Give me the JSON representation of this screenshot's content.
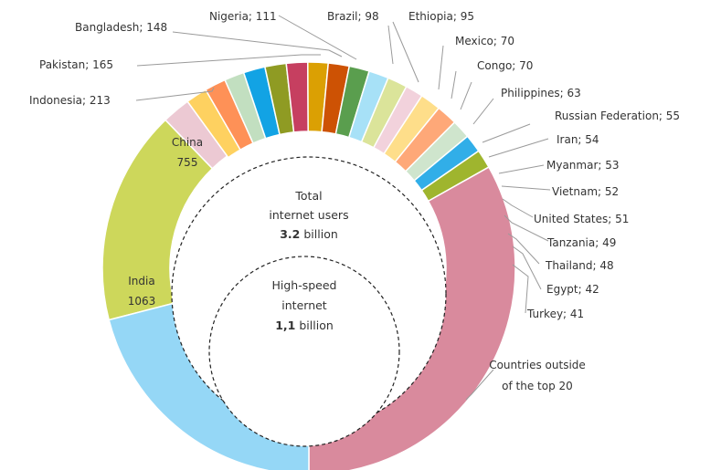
{
  "chart_data": {
    "type": "pie",
    "total_label": {
      "line1": "Total",
      "line2": "internet users",
      "value": "3.2",
      "unit": " billion"
    },
    "inner_label": {
      "line1": "High-speed",
      "line2": "internet",
      "value": "1,1",
      "unit": " billion"
    },
    "slices": [
      {
        "label": "China",
        "value": 755,
        "color": "#cdd75b"
      },
      {
        "label": "Indonesia",
        "value": 213,
        "color": "#ecc9d3"
      },
      {
        "label": "Pakistan",
        "value": 165,
        "color": "#fed160"
      },
      {
        "label": "Bangladesh",
        "value": 148,
        "color": "#fe9157"
      },
      {
        "label": "Nigeria",
        "value": 111,
        "color": "#c2dfc0"
      },
      {
        "label": "Brazil",
        "value": 98,
        "color": "#12a3e4"
      },
      {
        "label": "Ethiopia",
        "value": 95,
        "color": "#8f9b23"
      },
      {
        "label": "Mexico",
        "value": 70,
        "color": "#c63f60"
      },
      {
        "label": "Congo",
        "value": 70,
        "color": "#dba003"
      },
      {
        "label": "Philippines",
        "value": 63,
        "color": "#cd5204"
      },
      {
        "label": "Russian Federation",
        "value": 55,
        "color": "#5a9e4e"
      },
      {
        "label": "Iran",
        "value": 54,
        "color": "#a7e1f7"
      },
      {
        "label": "Myanmar",
        "value": 53,
        "color": "#dbe49a"
      },
      {
        "label": "Vietnam",
        "value": 52,
        "color": "#f2d2dc"
      },
      {
        "label": "United States",
        "value": 51,
        "color": "#fede8a"
      },
      {
        "label": "Tanzania",
        "value": 49,
        "color": "#fea878"
      },
      {
        "label": "Thailand",
        "value": 48,
        "color": "#cfe5cd"
      },
      {
        "label": "Egypt",
        "value": 42,
        "color": "#31aee8"
      },
      {
        "label": "Turkey",
        "value": 41,
        "color": "#9fb52e"
      },
      {
        "label": "Countries outside of the top 20",
        "value": null,
        "color": "#d98a9d"
      },
      {
        "label": "India",
        "value": 1063,
        "color": "#95d7f6"
      }
    ],
    "labels": [
      {
        "text": "China",
        "value": "755"
      },
      {
        "text": "India",
        "value": "1063"
      },
      {
        "text": "Indonesia; 213"
      },
      {
        "text": "Pakistan; 165"
      },
      {
        "text": "Bangladesh; 148"
      },
      {
        "text": "Nigeria; 111"
      },
      {
        "text": "Brazil; 98"
      },
      {
        "text": "Ethiopia; 95"
      },
      {
        "text": "Mexico; 70"
      },
      {
        "text": "Congo; 70"
      },
      {
        "text": "Philippines; 63"
      },
      {
        "text": "Russian Federation; 55"
      },
      {
        "text": "Iran; 54"
      },
      {
        "text": "Myanmar; 53"
      },
      {
        "text": "Vietnam; 52"
      },
      {
        "text": "United States; 51"
      },
      {
        "text": "Tanzania; 49"
      },
      {
        "text": "Thailand; 48"
      },
      {
        "text": "Egypt; 42"
      },
      {
        "text": "Turkey; 41"
      },
      {
        "text": "Countries outside",
        "text2": "of the top 20"
      }
    ]
  }
}
